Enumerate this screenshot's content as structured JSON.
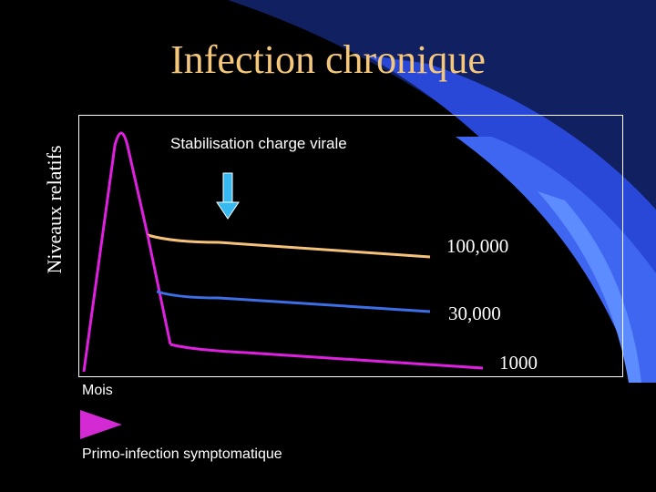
{
  "slide": {
    "title": "Infection chronique",
    "y_axis_label": "Niveaux relatifs",
    "x_axis_label": "Mois",
    "annotation": "Stabilisation charge virale",
    "footer_label": "Primo-infection symptomatique"
  },
  "levels": [
    {
      "label": "100,000",
      "color": "#f5c27a"
    },
    {
      "label": "30,000",
      "color": "#3c6ee6"
    },
    {
      "label": "1000",
      "color": "#e020e0"
    }
  ],
  "colors": {
    "background": "#000000",
    "decoration": "#2a48d8",
    "title": "#f4c77a",
    "arrow": "#36b8f0",
    "triangle": "#d42ad4"
  }
}
